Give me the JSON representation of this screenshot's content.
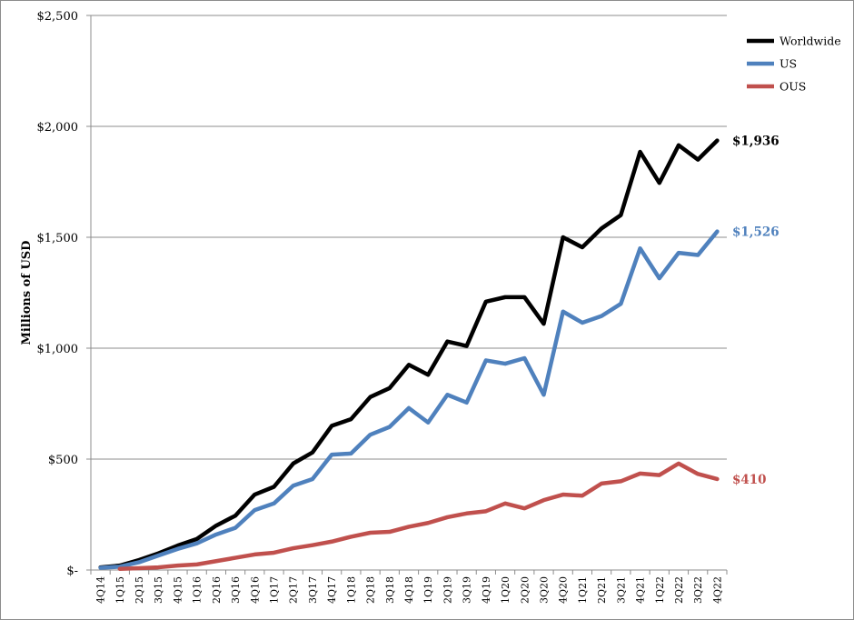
{
  "chart_data": {
    "type": "line",
    "ylabel": "Millions of USD",
    "ylim": [
      0,
      2500
    ],
    "yticks": [
      0,
      500,
      1000,
      1500,
      2000,
      2500
    ],
    "ytick_labels": [
      "$-",
      "$500",
      "$1,000",
      "$1,500",
      "$2,000",
      "$2,500"
    ],
    "grid": "horizontal",
    "legend_position": "top-right",
    "categories": [
      "4Q14",
      "1Q15",
      "2Q15",
      "3Q15",
      "4Q15",
      "1Q16",
      "2Q16",
      "3Q16",
      "4Q16",
      "1Q17",
      "2Q17",
      "3Q17",
      "4Q17",
      "1Q18",
      "2Q18",
      "3Q18",
      "4Q18",
      "1Q19",
      "2Q19",
      "3Q19",
      "4Q19",
      "1Q20",
      "2Q20",
      "3Q20",
      "4Q20",
      "1Q21",
      "2Q21",
      "3Q21",
      "4Q21",
      "1Q22",
      "2Q22",
      "3Q22",
      "4Q22"
    ],
    "series": [
      {
        "name": "Worldwide",
        "color": "#000000",
        "end_label": "$1,936",
        "values": [
          12,
          20,
          45,
          75,
          110,
          140,
          200,
          245,
          340,
          375,
          480,
          530,
          650,
          680,
          780,
          820,
          925,
          880,
          1030,
          1010,
          1210,
          1230,
          1230,
          1110,
          1500,
          1455,
          1540,
          1600,
          1885,
          1745,
          1915,
          1850,
          1936
        ]
      },
      {
        "name": "US",
        "color": "#4f81bd",
        "end_label": "$1,526",
        "values": [
          10,
          15,
          35,
          65,
          95,
          120,
          160,
          190,
          270,
          300,
          380,
          410,
          520,
          525,
          610,
          645,
          730,
          665,
          790,
          755,
          945,
          930,
          955,
          790,
          1165,
          1115,
          1145,
          1200,
          1450,
          1315,
          1430,
          1420,
          1526
        ]
      },
      {
        "name": "OUS",
        "color": "#c0504d",
        "end_label": "$410",
        "values": [
          null,
          5,
          8,
          12,
          20,
          25,
          40,
          55,
          70,
          78,
          98,
          112,
          128,
          150,
          168,
          172,
          195,
          212,
          238,
          255,
          265,
          300,
          278,
          315,
          340,
          335,
          390,
          400,
          435,
          428,
          480,
          433,
          410
        ]
      }
    ]
  }
}
